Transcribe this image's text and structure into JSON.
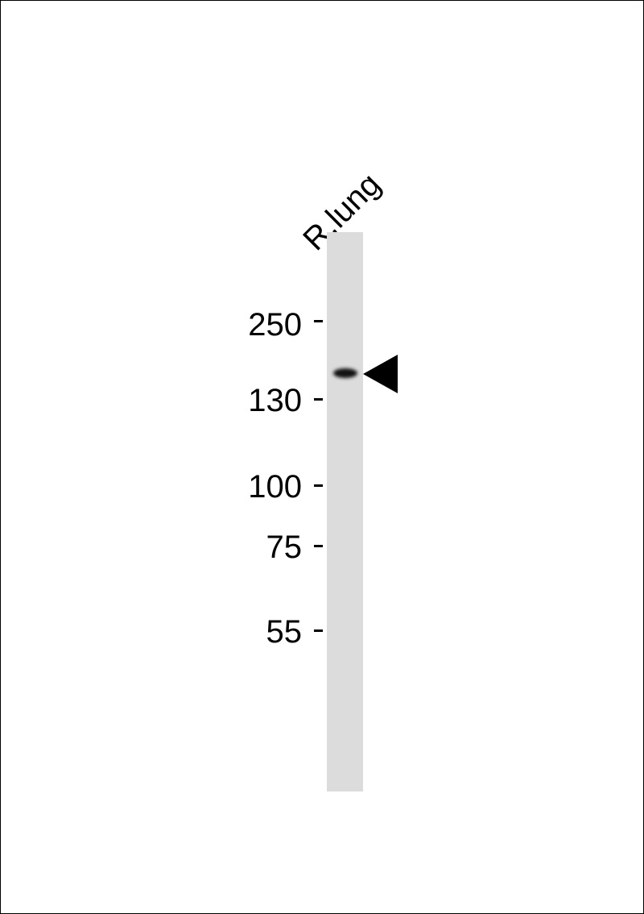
{
  "lane_labels": [
    "R.lung"
  ],
  "markers": [
    {
      "label": "250"
    },
    {
      "label": "130"
    },
    {
      "label": "100"
    },
    {
      "label": "75"
    },
    {
      "label": "55"
    }
  ],
  "band_indicator": "arrowhead-left-icon",
  "colors": {
    "lane": "#dcdcdc",
    "band": "#111111"
  }
}
